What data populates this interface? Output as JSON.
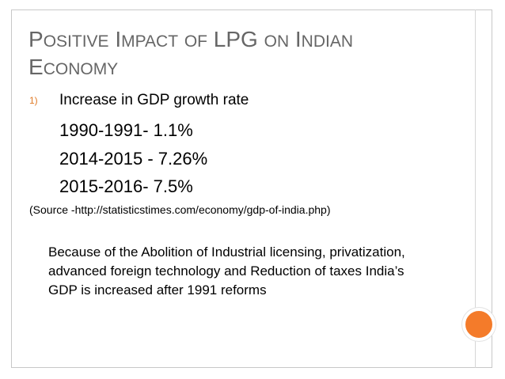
{
  "slide": {
    "title": {
      "p1_first": "P",
      "p1_rest": "ositive",
      "p2_first": "I",
      "p2_rest": "mpact",
      "p3": "of",
      "p4": "LPG",
      "p5": "on",
      "p6_first": "I",
      "p6_rest": "ndian",
      "p7_first": "E",
      "p7_rest": "conomy"
    },
    "list_number": "1)",
    "list_text": "Increase in GDP growth rate",
    "growth_rates": [
      "1990-1991-  1.1%",
      "2014-2015 - 7.26%",
      "2015-2016-  7.5%"
    ],
    "source": "(Source -http://statisticstimes.com/economy/gdp-of-india.php)",
    "paragraph": "Because of the Abolition of Industrial licensing, privatization, advanced foreign technology and Reduction of taxes India’s GDP is increased after 1991 reforms"
  },
  "colors": {
    "accent": "#f47b2a",
    "title": "#666666",
    "number": "#e07a26",
    "text": "#000000"
  }
}
